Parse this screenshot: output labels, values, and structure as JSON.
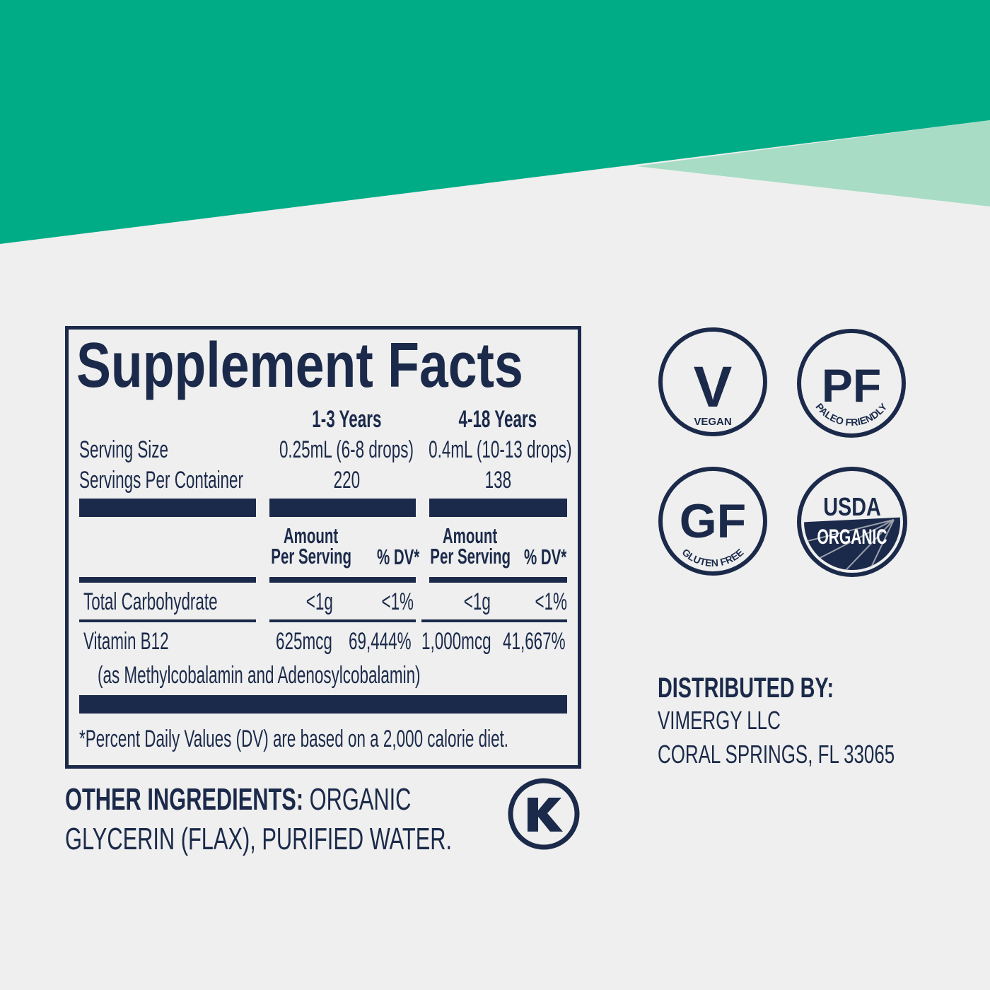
{
  "colors": {
    "green": "#00ac86",
    "light_green": "#a8dcc5",
    "navy": "#1b2a4a",
    "background": "#efefef"
  },
  "facts": {
    "title": "Supplement Facts",
    "columns": [
      "1-3 Years",
      "4-18 Years"
    ],
    "serving_size": {
      "label": "Serving Size",
      "values": [
        "0.25mL (6-8 drops)",
        "0.4mL (10-13 drops)"
      ]
    },
    "servings_per_container": {
      "label": "Servings Per Container",
      "values": [
        "220",
        "138"
      ]
    },
    "amount_header": {
      "line1": "Amount",
      "line2": "Per Serving",
      "dv": "% DV*"
    },
    "rows": [
      {
        "label": "Total Carbohydrate",
        "values": [
          "<1g",
          "<1%",
          "<1g",
          "<1%"
        ]
      },
      {
        "label": "Vitamin B12",
        "values": [
          "625mcg",
          "69,444%",
          "1,000mcg",
          "41,667%"
        ],
        "sub": "(as Methylcobalamin and Adenosylcobalamin)"
      }
    ],
    "footnote": "*Percent Daily Values (DV) are based on a 2,000 calorie diet."
  },
  "other_ingredients": {
    "label": "OTHER INGREDIENTS:",
    "line1": "ORGANIC",
    "line2": "GLYCERIN (FLAX), PURIFIED WATER."
  },
  "badges": {
    "vegan": {
      "mark": "V",
      "text": "VEGAN"
    },
    "paleo": {
      "mark": "PF",
      "text": "PALEO FRIENDLY"
    },
    "gluten": {
      "mark": "GF",
      "text": "GLUTEN FREE"
    },
    "usda": {
      "mark": "USDA",
      "text": "ORGANIC"
    },
    "kosher": {
      "mark": "K"
    }
  },
  "distributor": {
    "label": "DISTRIBUTED BY:",
    "name": "VIMERGY LLC",
    "address": "CORAL SPRINGS, FL 33065"
  }
}
